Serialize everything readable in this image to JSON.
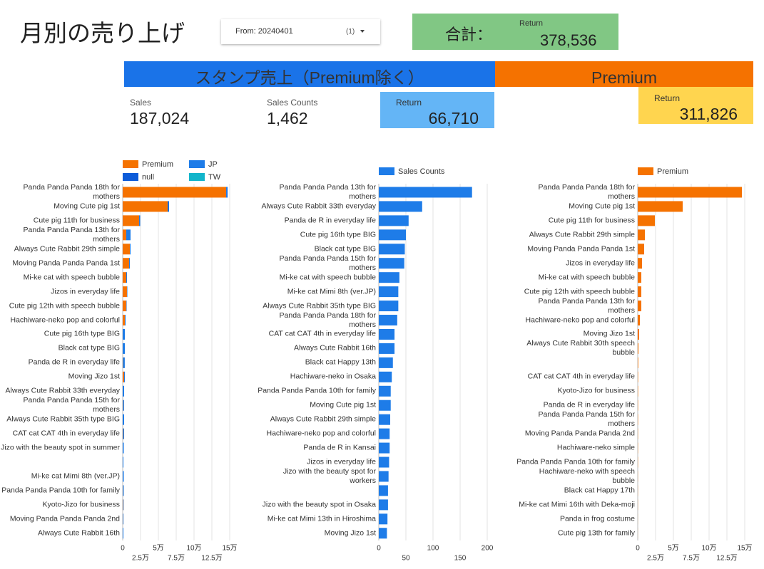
{
  "title": "月別の売り上げ",
  "date_filter": {
    "label": "From: 20240401",
    "count": "(1)"
  },
  "total": {
    "label": "合計：",
    "sublabel": "Return",
    "value": "378,536"
  },
  "sections": [
    {
      "title": "スタンプ売上（Premium除く）"
    },
    {
      "title": "Premium"
    }
  ],
  "scorecards": [
    {
      "label": "Sales",
      "value": "187,024"
    },
    {
      "label": "Sales Counts",
      "value": "1,462"
    },
    {
      "label": "Return",
      "value": "66,710"
    },
    {
      "label": "Return",
      "value": "311,826"
    }
  ],
  "chart_data": [
    {
      "type": "hbar_stacked",
      "legend": "top",
      "categories": [
        "Panda Panda Panda 18th for mothers",
        "Moving Cute pig 1st",
        "Cute pig 11th for business",
        "Panda Panda Panda 13th for mothers",
        "Always Cute Rabbit 29th simple",
        "Moving Panda Panda Panda 1st",
        "Mi-ke cat with speech bubble",
        "Jizos in everyday life",
        "Cute pig 12th with speech bubble",
        "Hachiware-neko pop and colorful",
        "Cute pig 16th type BIG",
        "Black cat type BIG",
        "Panda de R in everyday life",
        "Moving Jizo 1st",
        "Always Cute Rabbit 33th everyday",
        "Panda Panda Panda 15th for mothers",
        "Always Cute Rabbit 35th type BIG",
        "CAT cat CAT 4th in everyday life",
        "Jizo with the beauty spot in summer",
        null,
        "Mi-ke cat Mimi 8th (ver.JP)",
        "Panda Panda Panda 10th for family",
        "Kyoto-Jizo for business",
        "Moving Panda Panda Panda 2nd",
        "Always Cute Rabbit 16th"
      ],
      "series": [
        {
          "name": "Premium",
          "color": "#f57200",
          "values": [
            145000,
            63000,
            23000,
            5000,
            10000,
            9000,
            5000,
            6000,
            5000,
            3000,
            0,
            0,
            400,
            2000,
            0,
            400,
            0,
            500,
            0,
            0,
            0,
            300,
            500,
            300,
            0
          ]
        },
        {
          "name": "JP",
          "color": "#1e7ce8",
          "values": [
            1500,
            1500,
            1500,
            6000,
            1000,
            1000,
            1000,
            500,
            500,
            1000,
            3000,
            3000,
            2500,
            1000,
            2000,
            1500,
            2000,
            1500,
            1500,
            1000,
            1500,
            1200,
            800,
            800,
            1000
          ]
        },
        {
          "name": "null",
          "color": "#0d5bd9",
          "values": [
            500,
            500,
            0,
            0,
            0,
            0,
            0,
            0,
            0,
            0,
            0,
            0,
            0,
            0,
            0,
            0,
            0,
            0,
            0,
            0,
            0,
            0,
            0,
            0,
            0
          ]
        },
        {
          "name": "TW",
          "color": "#12b5cb",
          "values": [
            0,
            0,
            0,
            0,
            0,
            0,
            0,
            0,
            0,
            0,
            0,
            0,
            0,
            0,
            0,
            0,
            0,
            0,
            0,
            0,
            0,
            0,
            0,
            0,
            0
          ]
        }
      ],
      "xlim": [
        0,
        150000
      ],
      "xticks": [
        0,
        {
          "value": 25000,
          "label": "2.5万"
        },
        {
          "value": 50000,
          "label": "5万"
        },
        {
          "value": 75000,
          "label": "7.5万"
        },
        {
          "value": 100000,
          "label": "10万"
        },
        {
          "value": 125000,
          "label": "12.5万"
        },
        {
          "value": 150000,
          "label": "15万"
        }
      ],
      "grid": true
    },
    {
      "type": "hbar",
      "legend": "top",
      "categories": [
        "Panda Panda Panda 13th for mothers",
        "Always Cute Rabbit 33th everyday",
        "Panda de R in everyday life",
        "Cute pig 16th type BIG",
        "Black cat type BIG",
        "Panda Panda Panda 15th for mothers",
        "Mi-ke cat with speech bubble",
        "Mi-ke cat Mimi 8th (ver.JP)",
        "Always Cute Rabbit 35th type BIG",
        "Panda Panda Panda 18th for mothers",
        "CAT cat CAT 4th in everyday life",
        "Always Cute Rabbit 16th",
        "Black cat Happy 13th",
        "Hachiware-neko in Osaka",
        "Panda Panda Panda 10th for family",
        "Moving Cute pig 1st",
        "Always Cute Rabbit 29th simple",
        "Hachiware-neko pop and colorful",
        "Panda de R in Kansai",
        "Jizos in everyday life",
        "Jizo with the beauty spot for workers",
        null,
        "Jizo with the beauty spot in Osaka",
        "Mi-ke cat Mimi 13th in Hiroshima",
        "Moving Jizo 1st"
      ],
      "series": [
        {
          "name": "Sales Counts",
          "color": "#1e7ce8",
          "values": [
            172,
            80,
            55,
            50,
            48,
            47,
            38,
            36,
            36,
            34,
            29,
            29,
            26,
            24,
            22,
            22,
            21,
            20,
            20,
            19,
            18,
            17,
            17,
            16,
            15
          ]
        }
      ],
      "xlim": [
        0,
        200
      ],
      "xticks": [
        0,
        50,
        100,
        150,
        200
      ],
      "grid": true
    },
    {
      "type": "hbar",
      "legend": "top",
      "categories": [
        "Panda Panda Panda 18th for mothers",
        "Moving Cute pig 1st",
        "Cute pig 11th for business",
        "Always Cute Rabbit 29th simple",
        "Moving Panda Panda Panda 1st",
        "Jizos in everyday life",
        "Mi-ke cat with speech bubble",
        "Cute pig 12th with speech bubble",
        "Panda Panda Panda 13th for mothers",
        "Hachiware-neko pop and colorful",
        "Moving Jizo 1st",
        "Always Cute Rabbit 30th speech bubble",
        null,
        "CAT cat CAT 4th in everyday life",
        "Kyoto-Jizo for business",
        "Panda de R in everyday life",
        "Panda Panda Panda 15th for mothers",
        "Moving Panda Panda Panda 2nd",
        "Hachiware-neko simple",
        "Panda Panda Panda 10th for family",
        "Hachiware-neko with speech bubble",
        "Black cat Happy 17th",
        "Mi-ke cat Mimi 16th with Deka-moji",
        "Panda in frog costume",
        "Cute pig 13th for family"
      ],
      "series": [
        {
          "name": "Premium",
          "color": "#f57200",
          "values": [
            146000,
            63000,
            24000,
            10000,
            9000,
            6000,
            5000,
            5000,
            5000,
            3000,
            2000,
            1000,
            700,
            500,
            500,
            400,
            400,
            300,
            300,
            300,
            200,
            200,
            200,
            100,
            100
          ]
        }
      ],
      "xlim": [
        0,
        150000
      ],
      "xticks": [
        0,
        {
          "value": 25000,
          "label": "2.5万"
        },
        {
          "value": 50000,
          "label": "5万"
        },
        {
          "value": 75000,
          "label": "7.5万"
        },
        {
          "value": 100000,
          "label": "10万"
        },
        {
          "value": 125000,
          "label": "12.5万"
        },
        {
          "value": 150000,
          "label": "15万"
        }
      ],
      "grid": true
    }
  ]
}
